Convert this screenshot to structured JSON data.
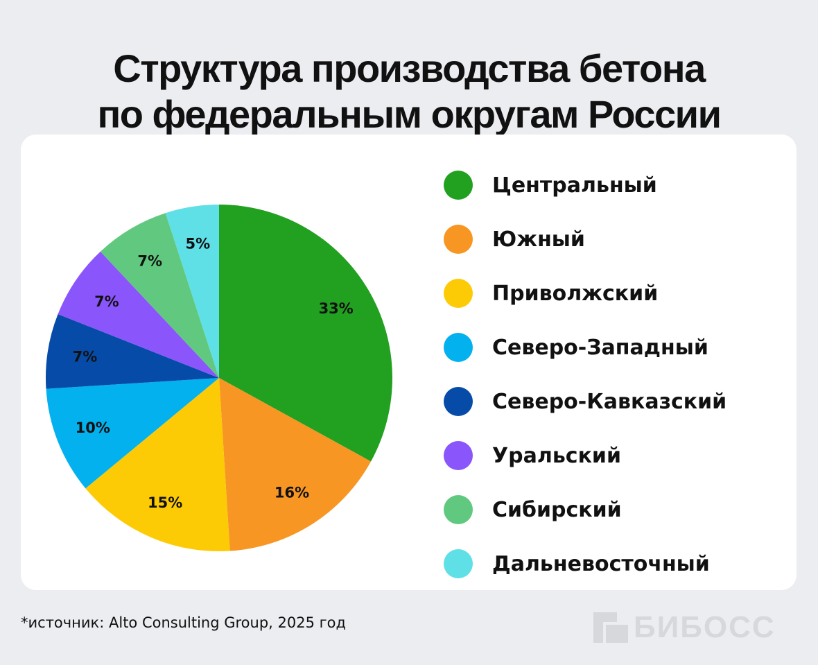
{
  "title": {
    "line1": "Структура производства бетона",
    "line2": "по федеральным округам России"
  },
  "chart_data": {
    "type": "pie",
    "title": "Структура производства бетона по федеральным округам России",
    "legend_position": "right",
    "slices": [
      {
        "name": "Центральный",
        "value": 33,
        "label": "33%",
        "color": "#22a020"
      },
      {
        "name": "Южный",
        "value": 16,
        "label": "16%",
        "color": "#f79622"
      },
      {
        "name": "Приволжский",
        "value": 15,
        "label": "15%",
        "color": "#fdcb05"
      },
      {
        "name": "Северо-Западный",
        "value": 10,
        "label": "10%",
        "color": "#03b1ef"
      },
      {
        "name": "Северо-Кавказский",
        "value": 7,
        "label": "7%",
        "color": "#064ba8"
      },
      {
        "name": "Уральский",
        "value": 7,
        "label": "7%",
        "color": "#8a55fb"
      },
      {
        "name": "Сибирский",
        "value": 7,
        "label": "7%",
        "color": "#61c97f"
      },
      {
        "name": "Дальневосточный",
        "value": 5,
        "label": "5%",
        "color": "#5fdfe6"
      }
    ]
  },
  "legend": [
    {
      "label": "Центральный",
      "color": "#22a020"
    },
    {
      "label": "Южный",
      "color": "#f79622"
    },
    {
      "label": "Приволжский",
      "color": "#fdcb05"
    },
    {
      "label": "Северо-Западный",
      "color": "#03b1ef"
    },
    {
      "label": "Северо-Кавказский",
      "color": "#064ba8"
    },
    {
      "label": "Уральский",
      "color": "#8a55fb"
    },
    {
      "label": "Сибирский",
      "color": "#61c97f"
    },
    {
      "label": "Дальневосточный",
      "color": "#5fdfe6"
    }
  ],
  "source": "*источник: Alto Consulting Group, 2025 год",
  "brand": {
    "name": "БИБОСС",
    "icon": "biboss-logo-icon",
    "color": "#d6d8dc"
  }
}
